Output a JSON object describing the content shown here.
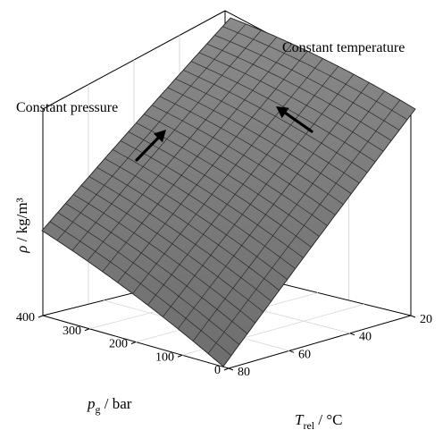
{
  "chart_data": {
    "type": "surface",
    "title": "",
    "x_axis": {
      "label": "p",
      "subscript": "g",
      "unit": " / bar",
      "ticks": [
        0,
        100,
        200,
        300,
        400
      ],
      "range": [
        0,
        400
      ]
    },
    "y_axis": {
      "label": "T",
      "subscript": "rel",
      "unit": " / °C",
      "ticks": [
        20,
        40,
        60,
        80
      ],
      "range": [
        20,
        80
      ]
    },
    "z_axis": {
      "label": "ρ",
      "unit": " / kg/m³"
    },
    "grid": true,
    "surface_color": "#7d7d7d",
    "annotations": [
      {
        "text": "Constant pressure"
      },
      {
        "text": "Constant temperature"
      }
    ]
  }
}
